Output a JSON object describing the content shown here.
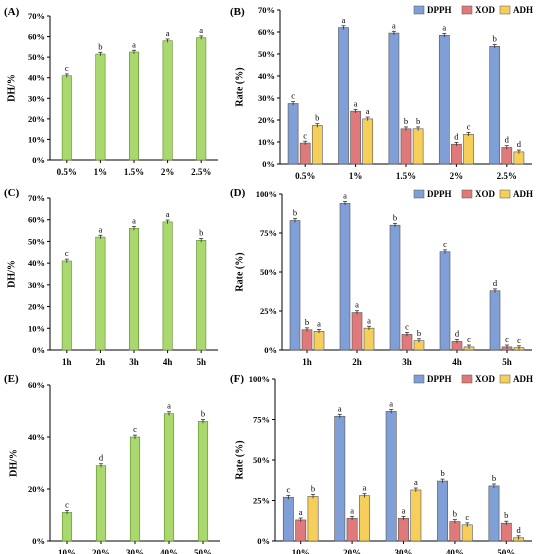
{
  "colors": {
    "dh_bar": "#a8d86e",
    "dh_stroke": "#5f8a2e",
    "DPPH": "#7f9fd6",
    "XOD": "#e07a7a",
    "ADH": "#f6cf5a",
    "stroke": "#555555"
  },
  "chart_data": [
    {
      "panel": "(A)",
      "type": "bar",
      "ylabel": "DH/%",
      "ylim": [
        0,
        70
      ],
      "yticks": [
        0,
        10,
        20,
        30,
        40,
        50,
        60,
        70
      ],
      "ytick_format": "pct",
      "categories": [
        "0.5%",
        "1%",
        "1.5%",
        "2%",
        "2.5%"
      ],
      "series": [
        {
          "key": "dh",
          "values": [
            41,
            51.5,
            52.5,
            58,
            59.5
          ],
          "letters": [
            "c",
            "b",
            "a",
            "a",
            "a"
          ]
        }
      ]
    },
    {
      "panel": "(B)",
      "type": "bar",
      "ylabel": "Rate (%)",
      "ylim": [
        0,
        70
      ],
      "yticks": [
        0,
        10,
        20,
        30,
        40,
        50,
        60,
        70
      ],
      "ytick_format": "pct",
      "legend": [
        "DPPH",
        "XOD",
        "ADH"
      ],
      "legend_position": "top-right",
      "categories": [
        "0.5%",
        "1%",
        "1.5%",
        "2%",
        "2.5%"
      ],
      "series": [
        {
          "name": "DPPH",
          "key": "DPPH",
          "values": [
            27.5,
            62,
            59.5,
            58.5,
            53.5
          ],
          "letters": [
            "c",
            "a",
            "a",
            "a",
            "b"
          ]
        },
        {
          "name": "XOD",
          "key": "XOD",
          "values": [
            9.5,
            24,
            16,
            9,
            7.5
          ],
          "letters": [
            "c",
            "a",
            "b",
            "d",
            "d"
          ]
        },
        {
          "name": "ADH",
          "key": "ADH",
          "values": [
            17.5,
            20.5,
            16,
            13.5,
            5.5
          ],
          "letters": [
            "b",
            "a",
            "b",
            "c",
            "d"
          ]
        }
      ]
    },
    {
      "panel": "(C)",
      "type": "bar",
      "ylabel": "DH/%",
      "ylim": [
        0,
        70
      ],
      "yticks": [
        0,
        10,
        20,
        30,
        40,
        50,
        60,
        70
      ],
      "ytick_format": "pct",
      "categories": [
        "1h",
        "2h",
        "3h",
        "4h",
        "5h"
      ],
      "series": [
        {
          "key": "dh",
          "values": [
            41,
            52,
            56,
            59,
            50.5
          ],
          "letters": [
            "c",
            "a",
            "a",
            "a",
            "b"
          ]
        }
      ]
    },
    {
      "panel": "(D)",
      "type": "bar",
      "ylabel": "Rate (%)",
      "ylim": [
        0,
        100
      ],
      "yticks": [
        0,
        25,
        50,
        75,
        100
      ],
      "ytick_format": "pct",
      "legend": [
        "DPPH",
        "XOD",
        "ADH"
      ],
      "legend_position": "top-right",
      "categories": [
        "1h",
        "2h",
        "3h",
        "4h",
        "5h"
      ],
      "series": [
        {
          "name": "DPPH",
          "key": "DPPH",
          "values": [
            83,
            94,
            80,
            63,
            38
          ],
          "letters": [
            "b",
            "a",
            "b",
            "c",
            "d"
          ]
        },
        {
          "name": "XOD",
          "key": "XOD",
          "values": [
            13,
            24,
            10,
            5.5,
            2
          ],
          "letters": [
            "b",
            "a",
            "c",
            "d",
            "c"
          ]
        },
        {
          "name": "ADH",
          "key": "ADH",
          "values": [
            12,
            14,
            6,
            2,
            1.5
          ],
          "letters": [
            "a",
            "a",
            "b",
            "c",
            "c"
          ]
        }
      ]
    },
    {
      "panel": "(E)",
      "type": "bar",
      "ylabel": "DH/%",
      "ylim": [
        0,
        60
      ],
      "yticks": [
        0,
        20,
        40,
        60
      ],
      "ytick_format": "pct",
      "categories": [
        "10%",
        "20%",
        "30%",
        "40%",
        "50%"
      ],
      "series": [
        {
          "key": "dh",
          "values": [
            11,
            29,
            40,
            49,
            46
          ],
          "letters": [
            "c",
            "d",
            "c",
            "a",
            "b"
          ]
        }
      ]
    },
    {
      "panel": "(F)",
      "type": "bar",
      "ylabel": "Rate (%)",
      "ylim": [
        0,
        100
      ],
      "yticks": [
        0,
        25,
        50,
        75,
        100
      ],
      "ytick_format": "pct",
      "legend": [
        "DPPH",
        "XOD",
        "ADH"
      ],
      "legend_position": "top-right",
      "categories": [
        "10%",
        "20%",
        "30%",
        "40%",
        "50%"
      ],
      "series": [
        {
          "name": "DPPH",
          "key": "DPPH",
          "values": [
            27,
            77,
            80,
            37,
            34
          ],
          "letters": [
            "c",
            "a",
            "a",
            "b",
            "b"
          ]
        },
        {
          "name": "XOD",
          "key": "XOD",
          "values": [
            13,
            14,
            14,
            12,
            11
          ],
          "letters": [
            "a",
            "a",
            "a",
            "b",
            "b"
          ]
        },
        {
          "name": "ADH",
          "key": "ADH",
          "values": [
            27.5,
            28,
            31.5,
            10,
            2
          ],
          "letters": [
            "b",
            "a",
            "a",
            "c",
            "d"
          ]
        }
      ]
    }
  ]
}
